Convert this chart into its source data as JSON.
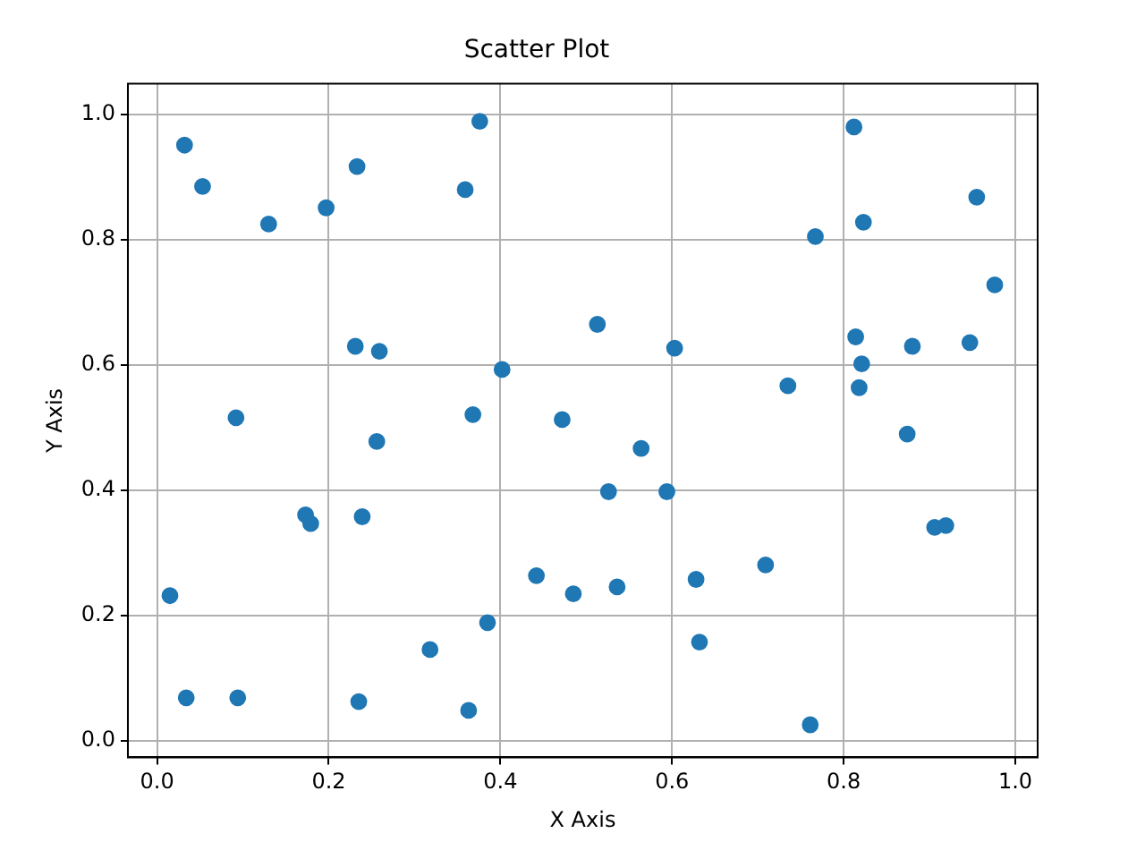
{
  "chart_data": {
    "type": "scatter",
    "title": "Scatter Plot",
    "xlabel": "X Axis",
    "ylabel": "Y Axis",
    "marker": "circle",
    "grid": true,
    "xlim": [
      -0.034,
      1.026
    ],
    "ylim": [
      -0.026,
      1.049
    ],
    "xticks": [
      {
        "value": 0,
        "label": "0.0"
      },
      0.2,
      0.4,
      0.6,
      0.8,
      {
        "value": 1,
        "label": "1.0"
      }
    ],
    "yticks": [
      {
        "value": 0,
        "label": "0.0"
      },
      0.2,
      0.4,
      0.6,
      0.8,
      {
        "value": 1,
        "label": "1.0"
      }
    ],
    "series": [
      {
        "color": "#1f77b4",
        "x": [
          0.032,
          0.053,
          0.13,
          0.197,
          0.233,
          0.376,
          0.359,
          0.092,
          0.231,
          0.259,
          0.256,
          0.015,
          0.034,
          0.094,
          0.173,
          0.179,
          0.239,
          0.235,
          0.318,
          0.363,
          0.385,
          0.368,
          0.402,
          0.442,
          0.472,
          0.485,
          0.513,
          0.526,
          0.536,
          0.564,
          0.594,
          0.603,
          0.628,
          0.632,
          0.709,
          0.735,
          0.761,
          0.767,
          0.812,
          0.814,
          0.823,
          0.821,
          0.818,
          0.88,
          0.874,
          0.906,
          0.919,
          0.947,
          0.955,
          0.976
        ],
        "values": [
          0.951,
          0.885,
          0.825,
          0.851,
          0.917,
          0.989,
          0.88,
          0.516,
          0.63,
          0.622,
          0.478,
          0.232,
          0.069,
          0.069,
          0.361,
          0.347,
          0.358,
          0.063,
          0.146,
          0.049,
          0.189,
          0.521,
          0.593,
          0.264,
          0.513,
          0.235,
          0.665,
          0.398,
          0.246,
          0.467,
          0.398,
          0.627,
          0.258,
          0.158,
          0.281,
          0.567,
          0.026,
          0.805,
          0.98,
          0.645,
          0.828,
          0.602,
          0.564,
          0.63,
          0.49,
          0.341,
          0.344,
          0.636,
          0.868,
          0.728
        ]
      }
    ]
  }
}
